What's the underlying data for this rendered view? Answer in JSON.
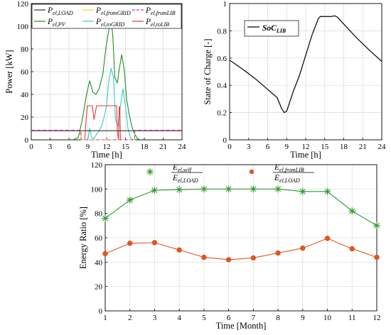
{
  "chart_data": [
    {
      "type": "line",
      "id": "power",
      "xlabel": "Time [h]",
      "ylabel": "Power [kW]",
      "xlim": [
        0,
        24
      ],
      "ylim": [
        0,
        120
      ],
      "xticks": [
        0,
        3,
        6,
        9,
        12,
        15,
        18,
        21,
        24
      ],
      "yticks": [
        0,
        20,
        40,
        60,
        80,
        100,
        120
      ],
      "grid": true,
      "legend": "top, three columns",
      "series": [
        {
          "name": "P_el,LOAD",
          "base": "P",
          "sub": "el,LOAD",
          "color": "#333333",
          "dash": "",
          "x": [
            0,
            24
          ],
          "y": [
            8,
            8
          ]
        },
        {
          "name": "P_el,fromGRID",
          "base": "P",
          "sub": "el,fromGRID",
          "color": "#e6e600",
          "dash": "",
          "x": [
            0,
            7.8,
            7.9,
            16.4,
            16.5,
            24
          ],
          "y": [
            8,
            8,
            0,
            0,
            8,
            8
          ]
        },
        {
          "name": "P_el,fromLIB",
          "base": "P",
          "sub": "el,fromLIB",
          "color": "#cc33cc",
          "dash": "5,3",
          "x": [
            0,
            7.9,
            7.95,
            16.45,
            16.5,
            24
          ],
          "y": [
            8.5,
            8.5,
            0,
            0,
            8.5,
            8.5
          ]
        },
        {
          "name": "P_el,PV",
          "base": "P",
          "sub": "el,PV",
          "color": "#228b22",
          "dash": "",
          "x": [
            6.6,
            7.5,
            8.2,
            8.8,
            9.3,
            9.8,
            10.3,
            10.8,
            11.4,
            11.9,
            12.3,
            12.7,
            13.0,
            13.3,
            13.7,
            14.0,
            14.4,
            14.8,
            15.2,
            15.6,
            16.0,
            16.4,
            16.9,
            17.4
          ],
          "y": [
            0,
            2,
            20,
            40,
            52,
            42,
            40,
            45,
            58,
            82,
            95,
            107,
            90,
            55,
            50,
            62,
            75,
            62,
            35,
            22,
            12,
            6,
            1,
            0
          ]
        },
        {
          "name": "P_el,toGRID",
          "base": "P",
          "sub": "el,toGRID",
          "color": "#33cccc",
          "dash": "",
          "x": [
            9.0,
            9.3,
            9.6,
            10.0,
            10.4,
            10.8,
            11.2,
            11.6,
            12.0,
            12.3,
            12.7,
            13.1,
            13.4,
            13.8,
            14.2,
            14.6,
            15.0,
            15.4,
            15.8,
            16.2,
            16.5
          ],
          "y": [
            0,
            10,
            2,
            1,
            5,
            8,
            12,
            20,
            30,
            50,
            63,
            55,
            18,
            12,
            30,
            45,
            30,
            10,
            2,
            0,
            0
          ]
        },
        {
          "name": "P_el,toLIB",
          "base": "P",
          "sub": "el,toLIB",
          "color": "#e83a3a",
          "dash": "",
          "x": [
            8.5,
            8.9,
            9.7,
            10.0,
            10.4,
            10.9,
            13.6,
            13.7,
            13.9,
            14.0,
            14.1,
            14.2,
            14.3
          ],
          "y": [
            0,
            30,
            30,
            18,
            30,
            30,
            30,
            8,
            0,
            29,
            29,
            0,
            0
          ]
        }
      ]
    },
    {
      "type": "line",
      "id": "soc",
      "xlabel": "Time [h]",
      "ylabel": "State of Charge [-]",
      "xlim": [
        0,
        24
      ],
      "ylim": [
        0,
        1
      ],
      "xticks": [
        0,
        3,
        6,
        9,
        12,
        15,
        18,
        21,
        24
      ],
      "yticks": [
        0,
        0.2,
        0.4,
        0.6,
        0.8,
        1
      ],
      "grid": true,
      "legend": "top-left",
      "series": [
        {
          "name": "SoC_LIB",
          "base": "SoC",
          "sub": "LIB",
          "color": "#000000",
          "dash": "",
          "x": [
            0,
            2,
            4,
            6,
            7.5,
            8.2,
            8.6,
            9.0,
            10.0,
            11.0,
            12.0,
            13.0,
            14.0,
            14.3,
            15.0,
            16.0,
            16.6,
            17.0,
            18.0,
            20.0,
            22.0,
            24.0
          ],
          "y": [
            0.585,
            0.52,
            0.45,
            0.37,
            0.31,
            0.23,
            0.2,
            0.21,
            0.35,
            0.47,
            0.62,
            0.77,
            0.89,
            0.905,
            0.905,
            0.905,
            0.91,
            0.9,
            0.85,
            0.75,
            0.66,
            0.575
          ]
        }
      ]
    },
    {
      "type": "line",
      "id": "ratio",
      "xlabel": "Time [Month]",
      "ylabel": "Energy Ratio [%]",
      "xlim": [
        1,
        12
      ],
      "ylim": [
        0,
        120
      ],
      "xticks": [
        1,
        2,
        3,
        4,
        5,
        6,
        7,
        8,
        9,
        10,
        11,
        12
      ],
      "yticks": [
        0,
        20,
        40,
        60,
        80,
        100,
        120
      ],
      "grid": true,
      "legend": "top, two columns",
      "series": [
        {
          "name": "E_el,self / E_el,LOAD",
          "num_base": "E",
          "num_sub": "el,self",
          "den_base": "E",
          "den_sub": "el,LOAD",
          "color": "#2e9a2e",
          "marker": "star",
          "x": [
            1,
            2,
            3,
            4,
            5,
            6,
            7,
            8,
            9,
            10,
            11,
            12
          ],
          "y": [
            76,
            91,
            99,
            99.5,
            100,
            100,
            100,
            100,
            98,
            98,
            82,
            70
          ]
        },
        {
          "name": "E_el,fromLIB / E_el,LOAD",
          "num_base": "E",
          "num_sub": "el,fromLIB",
          "den_base": "E",
          "den_sub": "el,LOAD",
          "color": "#e0561f",
          "marker": "circle",
          "x": [
            1,
            2,
            3,
            4,
            5,
            6,
            7,
            8,
            9,
            10,
            11,
            12
          ],
          "y": [
            47,
            55.5,
            56,
            50,
            44,
            42,
            43.5,
            47.5,
            51.5,
            59.5,
            51,
            44
          ]
        }
      ]
    }
  ]
}
